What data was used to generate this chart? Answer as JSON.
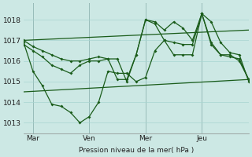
{
  "background_color": "#cce8e4",
  "grid_color": "#a8d4d0",
  "line_color": "#1a5c1a",
  "xlabel": "Pression niveau de la mer( hPa )",
  "ylim": [
    1012.5,
    1018.8
  ],
  "xlim": [
    0,
    96
  ],
  "yticks": [
    1013,
    1014,
    1015,
    1016,
    1017,
    1018
  ],
  "xtick_positions": [
    4,
    28,
    52,
    76
  ],
  "xtick_labels": [
    "Mar",
    "Ven",
    "Mer",
    "Jeu"
  ],
  "vlines": [
    4,
    28,
    52,
    76
  ],
  "trend1_x": [
    0,
    96
  ],
  "trend1_y": [
    1017.0,
    1017.5
  ],
  "trend2_x": [
    0,
    96
  ],
  "trend2_y": [
    1014.5,
    1015.1
  ],
  "s1_x": [
    0,
    4,
    8,
    12,
    16,
    20,
    24,
    28,
    32,
    36,
    40,
    44,
    48,
    52,
    56,
    60,
    64,
    68,
    72,
    76,
    80,
    84,
    88,
    92,
    96
  ],
  "s1_y": [
    1017.0,
    1016.7,
    1016.5,
    1016.3,
    1016.1,
    1016.0,
    1016.0,
    1016.1,
    1016.2,
    1016.1,
    1016.1,
    1015.0,
    1016.3,
    1018.0,
    1017.9,
    1017.5,
    1017.9,
    1017.6,
    1017.0,
    1018.3,
    1017.9,
    1016.9,
    1016.4,
    1016.3,
    1015.0
  ],
  "s2_x": [
    0,
    4,
    8,
    12,
    16,
    20,
    24,
    28,
    32,
    36,
    40,
    44,
    48,
    52,
    56,
    60,
    64,
    68,
    72,
    76,
    80,
    84,
    88,
    92,
    96
  ],
  "s2_y": [
    1016.8,
    1016.5,
    1016.2,
    1015.8,
    1015.6,
    1015.4,
    1015.8,
    1016.0,
    1016.0,
    1016.1,
    1015.1,
    1015.1,
    1016.3,
    1018.0,
    1017.8,
    1017.0,
    1016.9,
    1016.8,
    1016.8,
    1018.3,
    1016.8,
    1016.3,
    1016.2,
    1016.1,
    1015.1
  ],
  "s3_x": [
    0,
    4,
    8,
    12,
    16,
    20,
    24,
    28,
    32,
    36,
    40,
    44,
    48,
    52,
    56,
    60,
    64,
    68,
    72,
    76,
    80,
    84,
    88,
    92,
    96
  ],
  "s3_y": [
    1016.9,
    1015.5,
    1014.8,
    1013.9,
    1013.8,
    1013.5,
    1013.0,
    1013.3,
    1014.0,
    1015.5,
    1015.4,
    1015.4,
    1015.0,
    1015.2,
    1016.5,
    1017.0,
    1016.3,
    1016.3,
    1016.3,
    1018.3,
    1016.9,
    1016.3,
    1016.3,
    1016.0,
    1015.1
  ]
}
